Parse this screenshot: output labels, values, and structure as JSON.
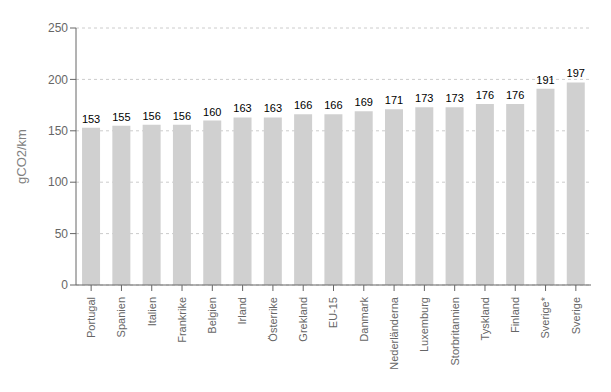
{
  "chart_data": {
    "type": "bar",
    "categories": [
      "Portugal",
      "Spanien",
      "Italien",
      "Frankrike",
      "Belgien",
      "Irland",
      "Österrike",
      "Grekland",
      "EU-15",
      "Danmark",
      "Nederländerna",
      "Luxemburg",
      "Storbritannien",
      "Tyskland",
      "Finland",
      "Sverige*",
      "Sverige"
    ],
    "values": [
      153,
      155,
      156,
      156,
      160,
      163,
      163,
      166,
      166,
      169,
      171,
      173,
      173,
      176,
      176,
      191,
      197
    ],
    "color": "#d0d0d0",
    "ylabel": "gCO2/km",
    "ylim": [
      0,
      250
    ],
    "yticks": [
      0,
      50,
      100,
      150,
      200,
      250
    ],
    "grid": true,
    "data_labels": true
  }
}
